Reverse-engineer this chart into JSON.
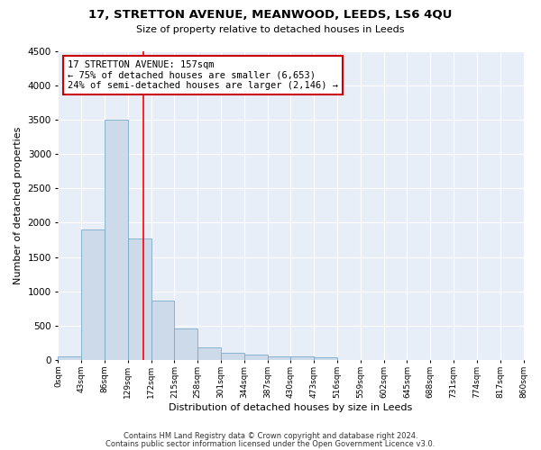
{
  "title": "17, STRETTON AVENUE, MEANWOOD, LEEDS, LS6 4QU",
  "subtitle": "Size of property relative to detached houses in Leeds",
  "xlabel": "Distribution of detached houses by size in Leeds",
  "ylabel": "Number of detached properties",
  "bar_color": "#ccdaea",
  "bar_edge_color": "#7aaac8",
  "background_color": "#e8eef8",
  "grid_color": "#ffffff",
  "red_line_x": 157,
  "annotation_title": "17 STRETTON AVENUE: 157sqm",
  "annotation_line1": "← 75% of detached houses are smaller (6,653)",
  "annotation_line2": "24% of semi-detached houses are larger (2,146) →",
  "annotation_box_color": "#ffffff",
  "annotation_box_edge": "#cc0000",
  "bin_edges": [
    0,
    43,
    86,
    129,
    172,
    215,
    258,
    301,
    344,
    387,
    430,
    473,
    516,
    559,
    602,
    645,
    688,
    731,
    774,
    817,
    860
  ],
  "bar_heights": [
    50,
    1900,
    3500,
    1775,
    860,
    460,
    185,
    100,
    75,
    55,
    50,
    35,
    0,
    0,
    0,
    0,
    0,
    0,
    0,
    0
  ],
  "ylim": [
    0,
    4500
  ],
  "xlim": [
    0,
    860
  ],
  "tick_labels": [
    "0sqm",
    "43sqm",
    "86sqm",
    "129sqm",
    "172sqm",
    "215sqm",
    "258sqm",
    "301sqm",
    "344sqm",
    "387sqm",
    "430sqm",
    "473sqm",
    "516sqm",
    "559sqm",
    "602sqm",
    "645sqm",
    "688sqm",
    "731sqm",
    "774sqm",
    "817sqm",
    "860sqm"
  ],
  "footer1": "Contains HM Land Registry data © Crown copyright and database right 2024.",
  "footer2": "Contains public sector information licensed under the Open Government Licence v3.0."
}
